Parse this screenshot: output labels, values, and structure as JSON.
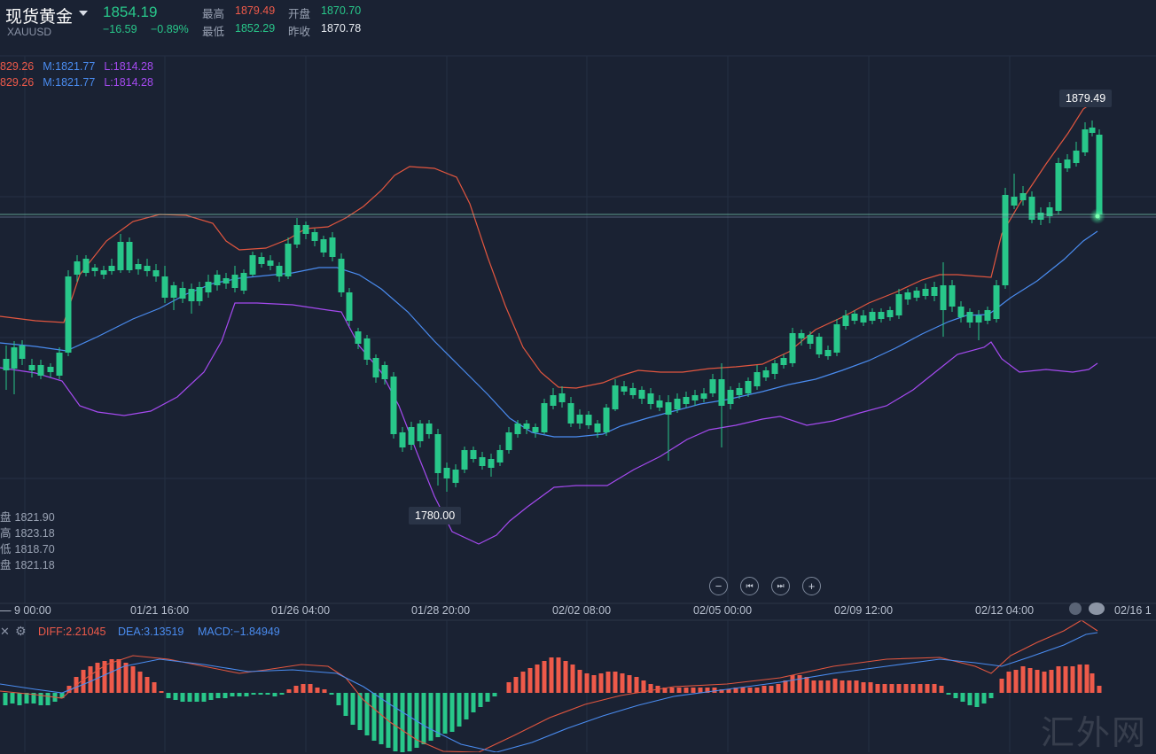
{
  "header": {
    "title": "现货黄金",
    "symbol": "XAUUSD",
    "price": "1854.19",
    "change": "−16.59",
    "change_pct": "−0.89%",
    "high_label": "最高",
    "high": "1879.49",
    "open_label": "开盘",
    "open": "1870.70",
    "low_label": "最低",
    "low": "1852.29",
    "prev_close_label": "昨收",
    "prev_close": "1870.78"
  },
  "boll_legend": [
    {
      "upper": "829.26",
      "mid": "M:1821.77",
      "lower": "L:1814.28"
    },
    {
      "upper": "829.26",
      "mid": "M:1821.77",
      "lower": "L:1814.28"
    }
  ],
  "ohlc_panel": [
    {
      "label": "盘",
      "value": "1821.90"
    },
    {
      "label": "高",
      "value": "1823.18"
    },
    {
      "label": "低",
      "value": "1818.70"
    },
    {
      "label": "盘",
      "value": "1821.18"
    }
  ],
  "markers": {
    "max": "1879.49",
    "min": "1780.00"
  },
  "x_axis": [
    "9 00:00",
    "01/21 16:00",
    "01/26 04:00",
    "01/28 20:00",
    "02/02 08:00",
    "02/05 00:00",
    "02/09 12:00",
    "02/12 04:00",
    "02/16 1"
  ],
  "macd_legend": {
    "diff": "DIFF:2.21045",
    "dea": "DEA:3.13519",
    "macd": "MACD:−1.84949"
  },
  "nav": {
    "zoom_out": "−",
    "prev": "⏮",
    "next": "⏭",
    "zoom_in": "+"
  },
  "watermark": "汇外网",
  "colors": {
    "up": "#ee5a4a",
    "down": "#28c78a",
    "boll_upper": "#e2563f",
    "boll_mid": "#4a8cf0",
    "boll_lower": "#a54af0",
    "background": "#1a2233"
  }
}
